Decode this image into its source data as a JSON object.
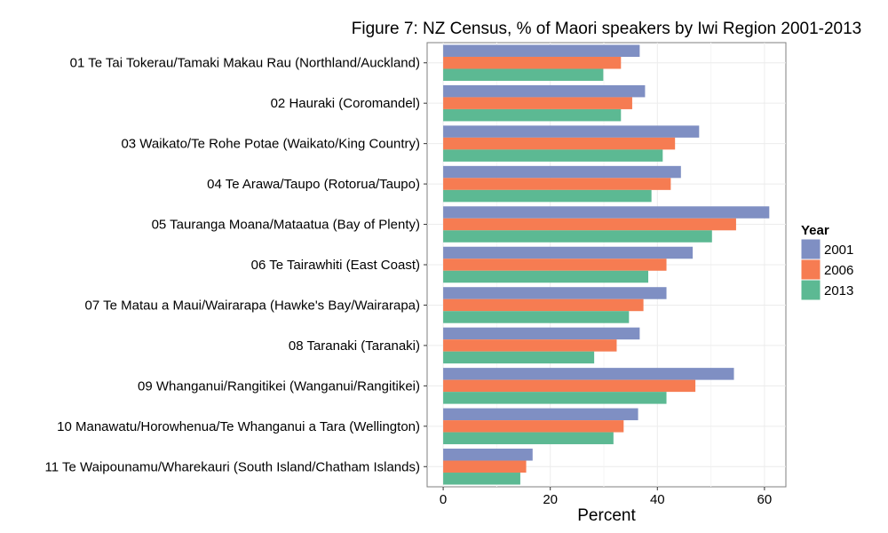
{
  "chart_data": {
    "type": "bar",
    "orientation": "horizontal",
    "title": "Figure 7: NZ Census, % of Maori speakers by Iwi Region 2001-2013",
    "xlabel": "Percent",
    "ylabel": "",
    "xlim": [
      -3,
      64
    ],
    "xticks": [
      "0",
      "20",
      "40",
      "60"
    ],
    "grid": true,
    "legend": {
      "title": "Year",
      "position": "right"
    },
    "categories": [
      "01 Te Tai Tokerau/Tamaki Makau Rau (Northland/Auckland)",
      "02 Hauraki (Coromandel)",
      "03 Waikato/Te Rohe Potae (Waikato/King Country)",
      "04 Te Arawa/Taupo (Rotorua/Taupo)",
      "05 Tauranga Moana/Mataatua (Bay of Plenty)",
      "06 Te Tairawhiti (East Coast)",
      "07 Te Matau a Maui/Wairarapa (Hawke's Bay/Wairarapa)",
      "08 Taranaki (Taranaki)",
      "09 Whanganui/Rangitikei (Wanganui/Rangitikei)",
      "10 Manawatu/Horowhenua/Te Whanganui a Tara (Wellington)",
      "11 Te Waipounamu/Wharekauri (South Island/Chatham Islands)"
    ],
    "series": [
      {
        "name": "2001",
        "color": "#7f8fc3",
        "values": [
          36.7,
          37.7,
          47.8,
          44.4,
          60.9,
          46.6,
          41.7,
          36.7,
          54.3,
          36.4,
          16.7
        ]
      },
      {
        "name": "2006",
        "color": "#f67c52",
        "values": [
          33.2,
          35.3,
          43.3,
          42.5,
          54.7,
          41.7,
          37.4,
          32.4,
          47.1,
          33.7,
          15.5
        ]
      },
      {
        "name": "2013",
        "color": "#5cb993",
        "values": [
          29.9,
          33.2,
          41.0,
          38.9,
          50.2,
          38.3,
          34.7,
          28.2,
          41.7,
          31.8,
          14.4
        ]
      }
    ]
  }
}
